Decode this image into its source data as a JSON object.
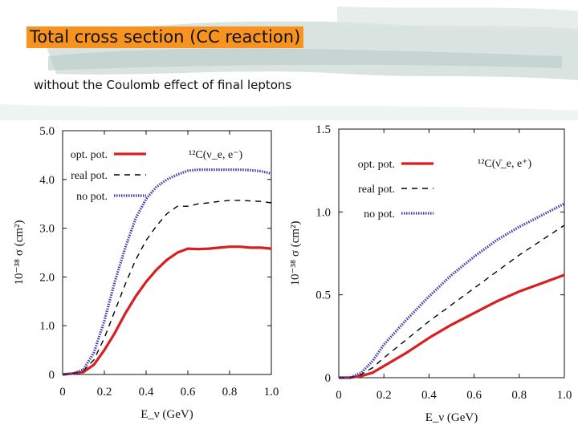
{
  "slide": {
    "title": "Total cross section (CC reaction)",
    "subtitle": "without the Coulomb effect of final leptons"
  },
  "colors": {
    "title_bg": "#f7931e",
    "opt": "#d81e1e",
    "real": "#000000",
    "none": "#3b3bb0"
  },
  "chart_data": [
    {
      "type": "line",
      "panel": "left",
      "reaction_label": "¹²C(ν_e, e⁻)",
      "xlabel": "E_ν (GeV)",
      "ylabel": "10⁻³⁸ σ (cm²)",
      "xlim": [
        0,
        1.0
      ],
      "ylim": [
        0,
        5.0
      ],
      "xticks": [
        "0",
        "0.2",
        "0.4",
        "0.6",
        "0.8",
        "1.0"
      ],
      "yticks": [
        "0",
        "1.0",
        "2.0",
        "3.0",
        "4.0",
        "5.0"
      ],
      "legend_position": "top",
      "series": [
        {
          "name": "opt. pot.",
          "style": "solid",
          "x": [
            0.0,
            0.05,
            0.1,
            0.15,
            0.2,
            0.25,
            0.3,
            0.35,
            0.4,
            0.45,
            0.5,
            0.55,
            0.6,
            0.65,
            0.7,
            0.75,
            0.8,
            0.85,
            0.9,
            0.95,
            1.0
          ],
          "y": [
            0.0,
            0.02,
            0.05,
            0.2,
            0.5,
            0.85,
            1.25,
            1.6,
            1.9,
            2.15,
            2.35,
            2.5,
            2.58,
            2.57,
            2.58,
            2.6,
            2.62,
            2.62,
            2.6,
            2.6,
            2.58
          ]
        },
        {
          "name": "real pot.",
          "style": "dashed",
          "x": [
            0.0,
            0.05,
            0.1,
            0.15,
            0.2,
            0.25,
            0.3,
            0.35,
            0.4,
            0.45,
            0.5,
            0.55,
            0.6,
            0.65,
            0.7,
            0.75,
            0.8,
            0.85,
            0.9,
            0.95,
            1.0
          ],
          "y": [
            0.0,
            0.02,
            0.08,
            0.3,
            0.75,
            1.3,
            1.85,
            2.35,
            2.75,
            3.05,
            3.3,
            3.45,
            3.45,
            3.5,
            3.52,
            3.55,
            3.57,
            3.57,
            3.56,
            3.55,
            3.52
          ]
        },
        {
          "name": "no pot.",
          "style": "dotted",
          "x": [
            0.0,
            0.05,
            0.1,
            0.15,
            0.2,
            0.25,
            0.3,
            0.35,
            0.4,
            0.45,
            0.5,
            0.55,
            0.6,
            0.65,
            0.7,
            0.75,
            0.8,
            0.85,
            0.9,
            0.95,
            1.0
          ],
          "y": [
            0.0,
            0.02,
            0.1,
            0.45,
            1.1,
            1.9,
            2.6,
            3.2,
            3.6,
            3.85,
            4.0,
            4.1,
            4.18,
            4.2,
            4.2,
            4.2,
            4.2,
            4.2,
            4.19,
            4.17,
            4.12
          ]
        }
      ]
    },
    {
      "type": "line",
      "panel": "right",
      "reaction_label": "¹²C(ν̄_e, e⁺)",
      "xlabel": "E_ν (GeV)",
      "ylabel": "10⁻³⁸ σ (cm²)",
      "xlim": [
        0,
        1.0
      ],
      "ylim": [
        0,
        1.5
      ],
      "xticks": [
        "0",
        "0.2",
        "0.4",
        "0.6",
        "0.8",
        "1.0"
      ],
      "yticks": [
        "0",
        "0.5",
        "1.0",
        "1.5"
      ],
      "legend_position": "top",
      "series": [
        {
          "name": "opt. pot.",
          "style": "solid",
          "x": [
            0.0,
            0.05,
            0.1,
            0.15,
            0.2,
            0.3,
            0.4,
            0.5,
            0.6,
            0.7,
            0.8,
            0.9,
            1.0
          ],
          "y": [
            0.0,
            0.0,
            0.01,
            0.03,
            0.07,
            0.15,
            0.24,
            0.32,
            0.39,
            0.46,
            0.52,
            0.57,
            0.62
          ]
        },
        {
          "name": "real pot.",
          "style": "dashed",
          "x": [
            0.0,
            0.05,
            0.1,
            0.15,
            0.2,
            0.3,
            0.4,
            0.5,
            0.6,
            0.7,
            0.8,
            0.9,
            1.0
          ],
          "y": [
            0.0,
            0.0,
            0.02,
            0.06,
            0.12,
            0.23,
            0.34,
            0.44,
            0.54,
            0.64,
            0.74,
            0.83,
            0.92
          ]
        },
        {
          "name": "no pot.",
          "style": "dotted",
          "x": [
            0.0,
            0.05,
            0.1,
            0.15,
            0.2,
            0.3,
            0.4,
            0.5,
            0.6,
            0.7,
            0.8,
            0.9,
            1.0
          ],
          "y": [
            0.0,
            0.0,
            0.03,
            0.1,
            0.2,
            0.35,
            0.49,
            0.62,
            0.73,
            0.83,
            0.91,
            0.98,
            1.05
          ]
        }
      ]
    }
  ]
}
